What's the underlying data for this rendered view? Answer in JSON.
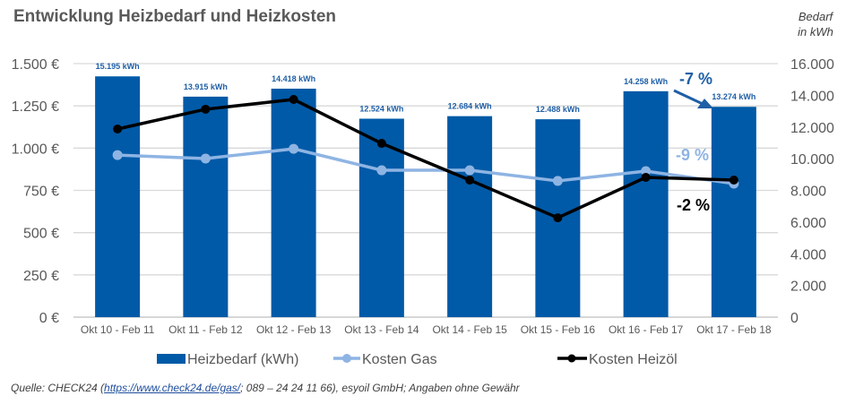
{
  "header": {
    "title": "Entwicklung Heizbedarf und Heizkosten",
    "right_axis_title_line1": "Bedarf",
    "right_axis_title_line2": "in kWh"
  },
  "chart_data": {
    "type": "bar",
    "title": "Entwicklung Heizbedarf und Heizkosten",
    "categories": [
      "Okt 10 - Feb 11",
      "Okt 11 - Feb 12",
      "Okt 12 - Feb 13",
      "Okt 13 - Feb 14",
      "Okt 14 - Feb 15",
      "Okt 15 - Feb 16",
      "Okt 16 - Feb 17",
      "Okt 17 - Feb 18"
    ],
    "left_axis": {
      "label": "",
      "ylim": [
        0,
        1500
      ],
      "ticks": [
        0,
        250,
        500,
        750,
        1000,
        1250,
        1500
      ],
      "tick_labels": [
        "0 €",
        "250 €",
        "500 €",
        "750 €",
        "1.000 €",
        "1.250 €",
        "1.500 €"
      ]
    },
    "right_axis": {
      "label": "Bedarf in kWh",
      "ylim": [
        0,
        16000
      ],
      "ticks": [
        0,
        2000,
        4000,
        6000,
        8000,
        10000,
        12000,
        14000,
        16000
      ],
      "tick_labels": [
        "0",
        "2.000",
        "4.000",
        "6.000",
        "8.000",
        "10.000",
        "12.000",
        "14.000",
        "16.000"
      ]
    },
    "grid": true,
    "legend_position": "bottom",
    "series": [
      {
        "name": "Heizbedarf (kWh)",
        "type": "bar",
        "axis": "right",
        "color": "#005aa7",
        "values": [
          15195,
          13915,
          14418,
          12524,
          12684,
          12488,
          14258,
          13274
        ],
        "data_labels": [
          "15.195 kWh",
          "13.915 kWh",
          "14.418 kWh",
          "12.524 kWh",
          "12.684 kWh",
          "12.488 kWh",
          "14.258 kWh",
          "13.274 kWh"
        ]
      },
      {
        "name": "Kosten Gas",
        "type": "line",
        "axis": "left",
        "color": "#8eb4e3",
        "values": [
          959,
          938,
          996,
          869,
          869,
          806,
          864,
          790
        ]
      },
      {
        "name": "Kosten Heizöl",
        "type": "line",
        "axis": "left",
        "color": "#000000",
        "values": [
          1113,
          1230,
          1288,
          1028,
          811,
          588,
          827,
          811
        ]
      }
    ],
    "annotations": [
      {
        "text": "-7 %",
        "series": "Heizbedarf (kWh)",
        "color": "#1f5fa6",
        "arrow": true
      },
      {
        "text": "-9 %",
        "series": "Kosten Gas",
        "color": "#8eb4e3"
      },
      {
        "text": "-2 %",
        "series": "Kosten Heizöl",
        "color": "#000000"
      }
    ]
  },
  "footer": {
    "source_prefix": "Quelle: CHECK24 (",
    "source_link": "https://www.check24.de/gas/",
    "source_suffix": "; 089 – 24 24 11 66), esyoil GmbH; Angaben ohne Gewähr"
  }
}
